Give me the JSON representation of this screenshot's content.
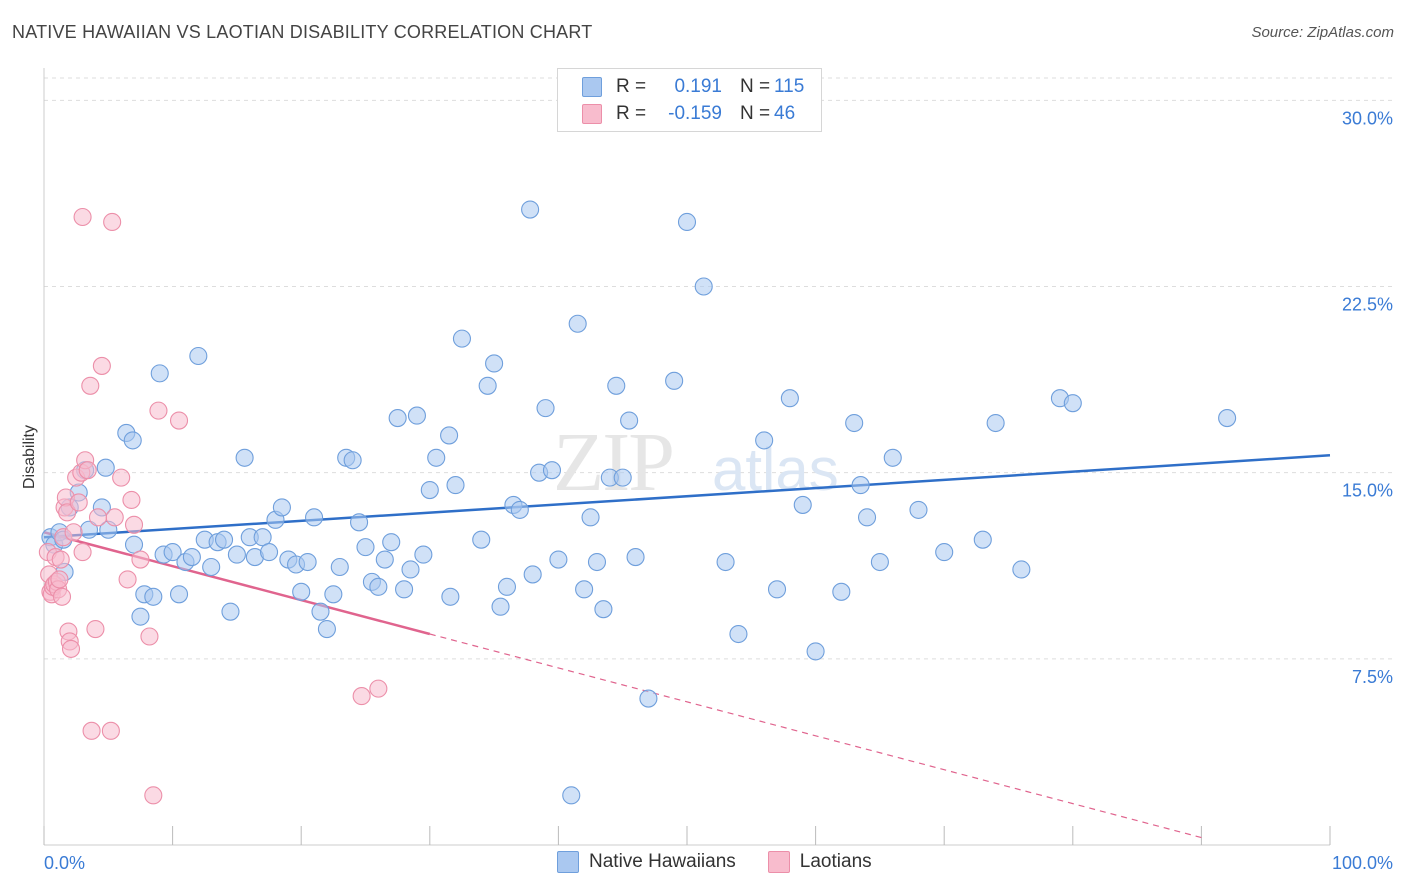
{
  "title": "NATIVE HAWAIIAN VS LAOTIAN DISABILITY CORRELATION CHART",
  "source": "Source: ZipAtlas.com",
  "watermark": "ZIPatlas",
  "colors": {
    "blue_fill": "#aac8f0",
    "blue_stroke": "#6f9fdc",
    "blue_line": "#2f6fc8",
    "pink_fill": "#f8bccd",
    "pink_stroke": "#ec8fa9",
    "pink_line": "#e0648e",
    "axis_text": "#3a7bd5",
    "grid": "#dddddd"
  },
  "legend_top": [
    {
      "r_label": "R =",
      "r_value": "0.191",
      "n_label": "N =",
      "n_value": "115"
    },
    {
      "r_label": "R =",
      "r_value": "-0.159",
      "n_label": "N =",
      "n_value": "46"
    }
  ],
  "chart_data": {
    "type": "scatter",
    "title": "NATIVE HAWAIIAN VS LAOTIAN DISABILITY CORRELATION CHART",
    "xlabel": "",
    "ylabel": "Disability",
    "xlim": [
      0,
      100
    ],
    "ylim": [
      0,
      30
    ],
    "x_tick_labels": [
      "0.0%",
      "100.0%"
    ],
    "y_ticks": [
      7.5,
      15.0,
      22.5,
      30.0
    ],
    "y_tick_labels": [
      "7.5%",
      "15.0%",
      "22.5%",
      "30.0%"
    ],
    "grid": true,
    "legend_position": "bottom",
    "series": [
      {
        "name": "Native Hawaiians",
        "r": 0.191,
        "n": 115,
        "trend": {
          "x": [
            0,
            100
          ],
          "y": [
            12.4,
            15.7
          ]
        },
        "points": [
          [
            0.5,
            12.4
          ],
          [
            0.8,
            12.1
          ],
          [
            1.2,
            12.6
          ],
          [
            1.5,
            12.3
          ],
          [
            1.6,
            11.0
          ],
          [
            2.0,
            13.6
          ],
          [
            2.7,
            14.2
          ],
          [
            3.2,
            15.1
          ],
          [
            3.5,
            12.7
          ],
          [
            4.5,
            13.6
          ],
          [
            4.8,
            15.2
          ],
          [
            5.0,
            12.7
          ],
          [
            6.4,
            16.6
          ],
          [
            6.9,
            16.3
          ],
          [
            7.0,
            12.1
          ],
          [
            7.5,
            9.2
          ],
          [
            7.8,
            10.1
          ],
          [
            8.5,
            10.0
          ],
          [
            9.0,
            19.0
          ],
          [
            9.3,
            11.7
          ],
          [
            10.0,
            11.8
          ],
          [
            10.5,
            10.1
          ],
          [
            11.0,
            11.4
          ],
          [
            11.5,
            11.6
          ],
          [
            12.0,
            19.7
          ],
          [
            12.5,
            12.3
          ],
          [
            13.0,
            11.2
          ],
          [
            13.5,
            12.2
          ],
          [
            14.0,
            12.3
          ],
          [
            14.5,
            9.4
          ],
          [
            15.0,
            11.7
          ],
          [
            15.6,
            15.6
          ],
          [
            16.0,
            12.4
          ],
          [
            16.4,
            11.6
          ],
          [
            17.0,
            12.4
          ],
          [
            17.5,
            11.8
          ],
          [
            18.0,
            13.1
          ],
          [
            18.5,
            13.6
          ],
          [
            19.0,
            11.5
          ],
          [
            19.6,
            11.3
          ],
          [
            20.0,
            10.2
          ],
          [
            20.5,
            11.4
          ],
          [
            21.0,
            13.2
          ],
          [
            21.5,
            9.4
          ],
          [
            22.0,
            8.7
          ],
          [
            22.5,
            10.1
          ],
          [
            23.0,
            11.2
          ],
          [
            23.5,
            15.6
          ],
          [
            24.0,
            15.5
          ],
          [
            24.5,
            13.0
          ],
          [
            25.0,
            12.0
          ],
          [
            25.5,
            10.6
          ],
          [
            26.0,
            10.4
          ],
          [
            26.5,
            11.5
          ],
          [
            27.0,
            12.2
          ],
          [
            27.5,
            17.2
          ],
          [
            28.0,
            10.3
          ],
          [
            28.5,
            11.1
          ],
          [
            29.0,
            17.3
          ],
          [
            29.5,
            11.7
          ],
          [
            30.0,
            14.3
          ],
          [
            30.5,
            15.6
          ],
          [
            31.5,
            16.5
          ],
          [
            31.6,
            10.0
          ],
          [
            32.0,
            14.5
          ],
          [
            32.5,
            20.4
          ],
          [
            34.0,
            12.3
          ],
          [
            34.5,
            18.5
          ],
          [
            35.0,
            19.4
          ],
          [
            35.5,
            9.6
          ],
          [
            36.0,
            10.4
          ],
          [
            36.5,
            13.7
          ],
          [
            37.0,
            13.5
          ],
          [
            37.8,
            25.6
          ],
          [
            38.0,
            10.9
          ],
          [
            38.5,
            15.0
          ],
          [
            39.0,
            17.6
          ],
          [
            39.5,
            15.1
          ],
          [
            40.0,
            11.5
          ],
          [
            41.0,
            2.0
          ],
          [
            41.5,
            21.0
          ],
          [
            42.0,
            10.3
          ],
          [
            42.5,
            13.2
          ],
          [
            43.0,
            11.4
          ],
          [
            43.5,
            9.5
          ],
          [
            44.0,
            14.8
          ],
          [
            44.5,
            18.5
          ],
          [
            45.0,
            14.8
          ],
          [
            45.5,
            17.1
          ],
          [
            46.0,
            11.6
          ],
          [
            47.0,
            5.9
          ],
          [
            49.0,
            18.7
          ],
          [
            50.0,
            25.1
          ],
          [
            51.3,
            22.5
          ],
          [
            53.0,
            11.4
          ],
          [
            54.0,
            8.5
          ],
          [
            56.0,
            16.3
          ],
          [
            57.0,
            10.3
          ],
          [
            58.0,
            18.0
          ],
          [
            59.0,
            13.7
          ],
          [
            60.0,
            7.8
          ],
          [
            62.0,
            10.2
          ],
          [
            63.0,
            17.0
          ],
          [
            63.5,
            14.5
          ],
          [
            64.0,
            13.2
          ],
          [
            65.0,
            11.4
          ],
          [
            66.0,
            15.6
          ],
          [
            68.0,
            13.5
          ],
          [
            70.0,
            11.8
          ],
          [
            73.0,
            12.3
          ],
          [
            74.0,
            17.0
          ],
          [
            76.0,
            11.1
          ],
          [
            79.0,
            18.0
          ],
          [
            80.0,
            17.8
          ],
          [
            92.0,
            17.2
          ]
        ]
      },
      {
        "name": "Laotians",
        "r": -0.159,
        "n": 46,
        "trend": {
          "x": [
            0,
            30
          ],
          "y": [
            12.6,
            8.5
          ]
        },
        "trend_dashed": {
          "x": [
            30,
            90
          ],
          "y": [
            8.5,
            0.3
          ]
        },
        "points": [
          [
            0.3,
            11.8
          ],
          [
            0.4,
            10.9
          ],
          [
            0.5,
            10.2
          ],
          [
            0.6,
            10.1
          ],
          [
            0.7,
            10.4
          ],
          [
            0.8,
            10.5
          ],
          [
            0.9,
            11.6
          ],
          [
            1.0,
            10.6
          ],
          [
            1.1,
            10.3
          ],
          [
            1.2,
            10.7
          ],
          [
            1.3,
            11.5
          ],
          [
            1.4,
            10.0
          ],
          [
            1.5,
            12.4
          ],
          [
            1.6,
            13.6
          ],
          [
            1.7,
            14.0
          ],
          [
            1.8,
            13.4
          ],
          [
            1.9,
            8.6
          ],
          [
            2.0,
            8.2
          ],
          [
            2.1,
            7.9
          ],
          [
            2.3,
            12.6
          ],
          [
            2.5,
            14.8
          ],
          [
            2.7,
            13.8
          ],
          [
            2.9,
            15.0
          ],
          [
            3.0,
            11.8
          ],
          [
            3.2,
            15.5
          ],
          [
            3.4,
            15.1
          ],
          [
            3.6,
            18.5
          ],
          [
            3.7,
            4.6
          ],
          [
            4.0,
            8.7
          ],
          [
            4.2,
            13.2
          ],
          [
            4.5,
            19.3
          ],
          [
            5.2,
            4.6
          ],
          [
            5.3,
            25.1
          ],
          [
            5.5,
            13.2
          ],
          [
            6.0,
            14.8
          ],
          [
            6.5,
            10.7
          ],
          [
            6.8,
            13.9
          ],
          [
            7.0,
            12.9
          ],
          [
            7.5,
            11.5
          ],
          [
            8.2,
            8.4
          ],
          [
            8.5,
            2.0
          ],
          [
            8.9,
            17.5
          ],
          [
            10.5,
            17.1
          ],
          [
            3.0,
            25.3
          ],
          [
            24.7,
            6.0
          ],
          [
            26.0,
            6.3
          ]
        ]
      }
    ]
  },
  "legend_bottom": [
    "Native Hawaiians",
    "Laotians"
  ]
}
